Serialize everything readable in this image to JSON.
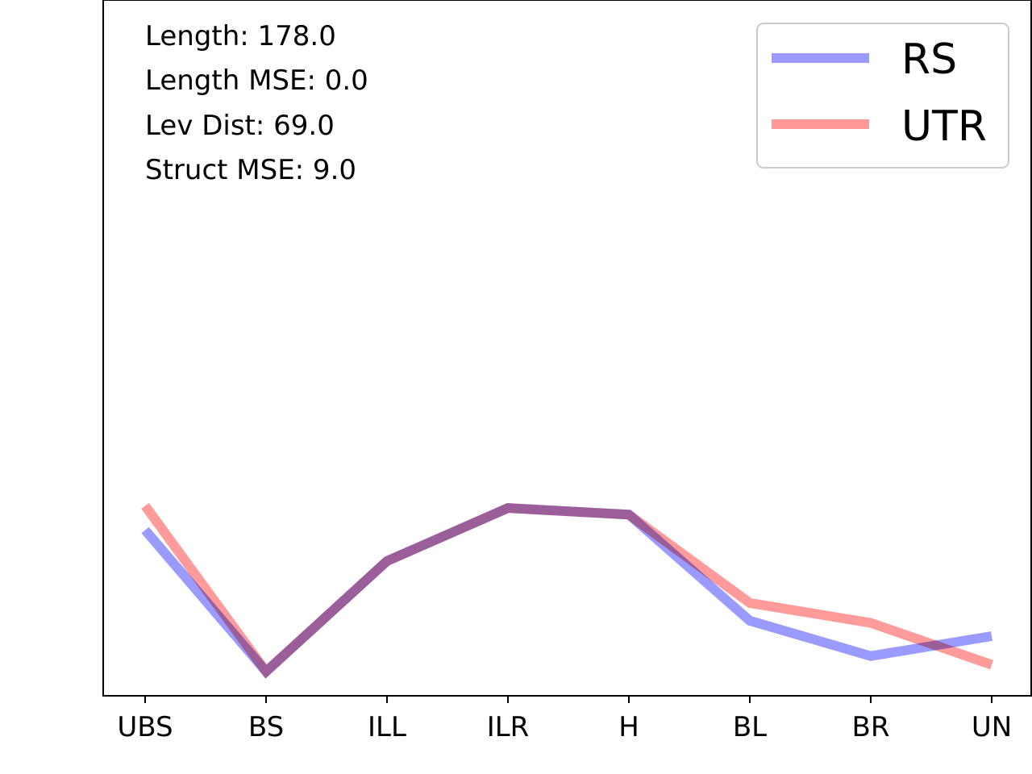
{
  "chart_data": {
    "type": "line",
    "categories": [
      "UBS",
      "BS",
      "ILL",
      "ILR",
      "H",
      "BL",
      "BR",
      "UN"
    ],
    "series": [
      {
        "name": "RS",
        "color": "#9999ff",
        "values": [
          0.75,
          0.11,
          0.61,
          0.85,
          0.82,
          0.34,
          0.18,
          0.27
        ]
      },
      {
        "name": "UTR",
        "color": "#ff9999",
        "values": [
          0.86,
          0.11,
          0.61,
          0.85,
          0.82,
          0.42,
          0.33,
          0.14
        ]
      }
    ],
    "ylim": [
      0,
      3.15
    ],
    "grid": false,
    "legend": "upper-right",
    "annotations": [
      "Length: 178.0",
      "Length MSE: 0.0",
      "Lev Dist: 69.0",
      "Struct MSE: 9.0"
    ]
  }
}
